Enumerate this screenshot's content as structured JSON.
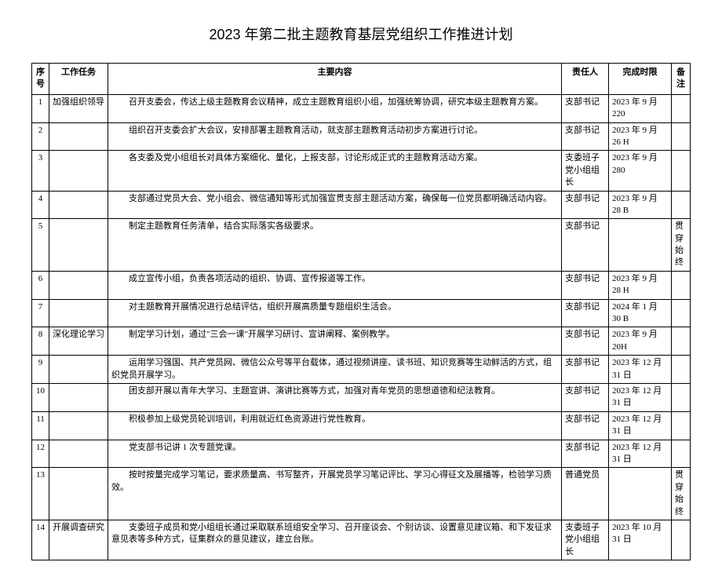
{
  "title": "2023 年第二批主题教育基层党组织工作推进计划",
  "headers": {
    "seq": "序号",
    "task": "工作任务",
    "content": "主要内容",
    "resp": "责任人",
    "deadline": "完成时限",
    "note": "备注"
  },
  "rows": [
    {
      "seq": "1",
      "task": "加强组织领导",
      "content": "召开支委会，传达上级主题教育会议精神，成立主题教育组织小组，加强统筹协调，研究本级主题教育方案。",
      "resp": "支部书记",
      "deadline": "2023 年 9 月 220",
      "note": ""
    },
    {
      "seq": "2",
      "task": "",
      "content": "组织召开支委会扩大会议，安排部署主题教育活动，就支部主题教育活动初步方案进行讨论。",
      "resp": "支部书记",
      "deadline": "2023 年 9 月 26 H",
      "note": ""
    },
    {
      "seq": "3",
      "task": "",
      "content": "各支委及党小组组长对具体方案细化、量化，上报支部，讨论形成正式的主题教育活动方案。",
      "resp": "支委班子党小组组长",
      "deadline": "2023 年 9 月 280",
      "note": ""
    },
    {
      "seq": "4",
      "task": "",
      "content": "支部通过党员大会、党小组会、微信通知等形式加强宣贯支部主题活动方案，确保每一位党员都明确活动内容。",
      "resp": "支部书记",
      "deadline": "2023 年 9 月 28 B",
      "note": ""
    },
    {
      "seq": "5",
      "task": "",
      "content": "制定主题教育任务清单，结合实际落实各级要求。",
      "resp": "支部书记",
      "deadline": "",
      "note": "贯穿始终"
    },
    {
      "seq": "6",
      "task": "",
      "content": "成立宣传小组，负责各项活动的组织、协调、宣传报道等工作。",
      "resp": "支部书记",
      "deadline": "2023 年 9 月 28 H",
      "note": ""
    },
    {
      "seq": "7",
      "task": "",
      "content": "对主题教育开展情况进行总结评估，组织开展高质量专题组织生活会。",
      "resp": "支部书记",
      "deadline": "2024 年 1 月 30 B",
      "note": ""
    },
    {
      "seq": "8",
      "task": "深化理论学习",
      "content": "制定学习计划，通过\"三会一课\"开展学习研讨、宣讲阐释、案例教学。",
      "resp": "支部书记",
      "deadline": "2023 年 9 月 20H",
      "note": ""
    },
    {
      "seq": "9",
      "task": "",
      "content": "运用学习强国、共产党员网、微信公众号等平台载体，通过视频讲座、读书班、知识竞赛等生动鲜活的方式，组织党员开展学习。",
      "resp": "支部书记",
      "deadline": "2023 年 12 月 31 日",
      "note": ""
    },
    {
      "seq": "10",
      "task": "",
      "content": "团支部开展以青年大学习、主题宣讲、演讲比赛等方式，加强对青年党员的思想道德和纪法教育。",
      "resp": "支部书记",
      "deadline": "2023 年 12 月 31 日",
      "note": ""
    },
    {
      "seq": "11",
      "task": "",
      "content": "积极参加上级党员轮训培训，利用就近红色资源进行党性教育。",
      "resp": "支部书记",
      "deadline": "2023 年 12 月 31 日",
      "note": ""
    },
    {
      "seq": "12",
      "task": "",
      "content": "党支部书记讲 1 次专题党课。",
      "resp": "支部书记",
      "deadline": "2023 年 12 月 31 日",
      "note": ""
    },
    {
      "seq": "13",
      "task": "",
      "content": "按时按量完成学习笔记，要求质量高、书写整齐，开展党员学习笔记评比、学习心得征文及展播等，检验学习质效。",
      "resp": "普通党员",
      "deadline": "",
      "note": "贯穿始终"
    },
    {
      "seq": "14",
      "task": "开展调查研究",
      "content": "支委班子成员和党小组组长通过采取联系班组安全学习、召开座谈会、个别访谈、设置意见建议箱、和下发征求意见表等多种方式，征集群众的意见建议，建立台账。",
      "resp": "支委班子党小组组长",
      "deadline": "2023 年 10 月 31 日",
      "note": ""
    }
  ]
}
